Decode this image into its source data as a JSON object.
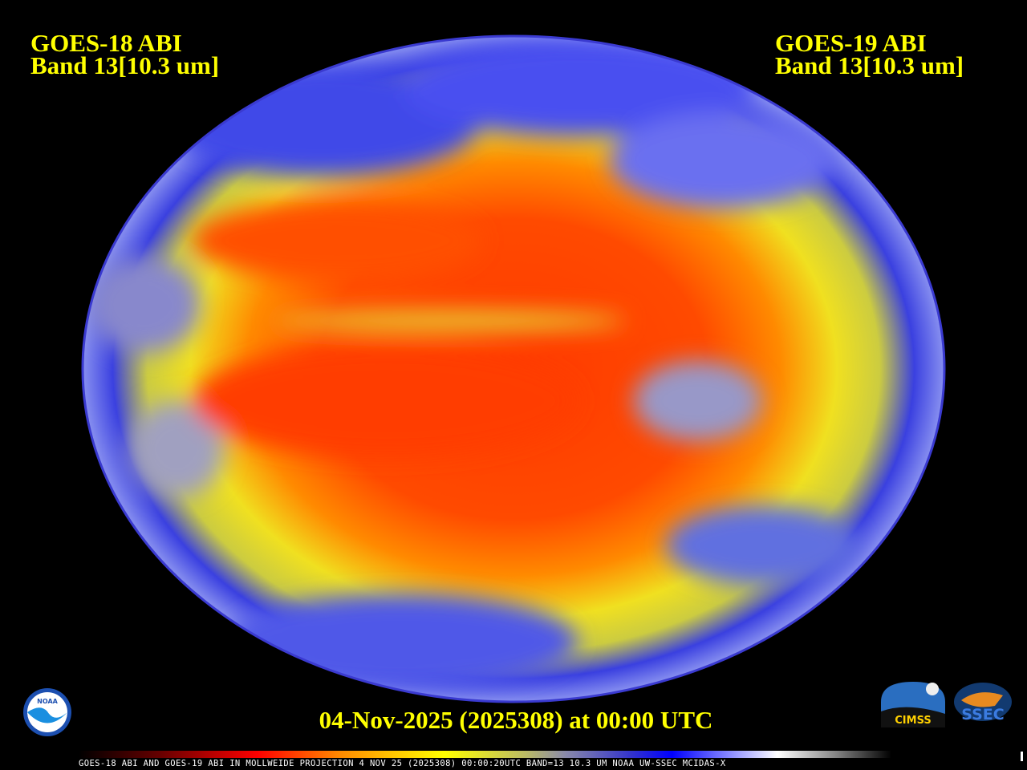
{
  "left_title": {
    "line1": "GOES-18 ABI",
    "line2": "Band 13[10.3 um]"
  },
  "right_title": {
    "line1": "GOES-19 ABI",
    "line2": "Band 13[10.3 um]"
  },
  "date_label": "04-Nov-2025 (2025308) at 00:00 UTC",
  "caption": "GOES-18 ABI AND GOES-19 ABI IN MOLLWEIDE PROJECTION 4 NOV 25 (2025308) 00:00:20UTC BAND=13 10.3 UM NOAA UW-SSEC MCIDAS-X",
  "logos": {
    "noaa": "NOAA",
    "cimss": "CIMSS",
    "ssec": "SSEC"
  },
  "colors": {
    "title": "#ffff00",
    "background": "#000000",
    "warm": "#ff3300",
    "mid": "#ffff00",
    "cold": "#0000ff",
    "coldest": "#ffffff"
  },
  "projection": "Mollweide"
}
